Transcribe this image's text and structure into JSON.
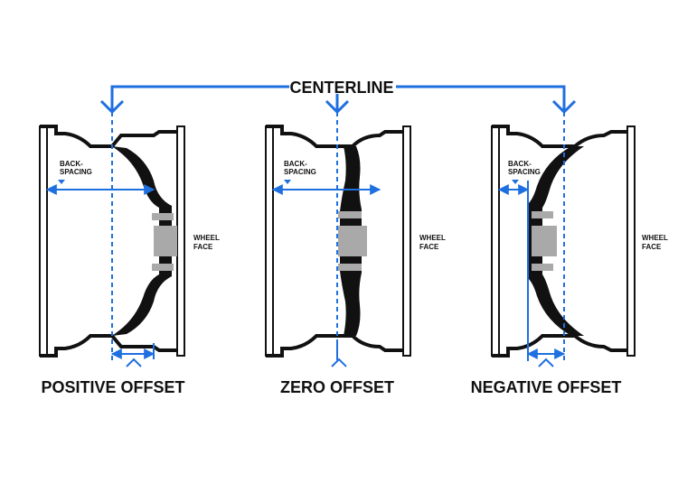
{
  "title": "CENTERLINE",
  "colors": {
    "accent": "#1e6fe0",
    "ink": "#111111",
    "hub": "#a9a9a9",
    "rim": "#ffffff"
  },
  "labels": {
    "backspacing_line1": "BACK-",
    "backspacing_line2": "SPACING",
    "wheel_face_line1": "WHEEL",
    "wheel_face_line2": "FACE"
  },
  "panels": [
    {
      "id": "positive",
      "caption": "POSITIVE OFFSET"
    },
    {
      "id": "zero",
      "caption": "ZERO OFFSET"
    },
    {
      "id": "negative",
      "caption": "NEGATIVE OFFSET"
    }
  ]
}
